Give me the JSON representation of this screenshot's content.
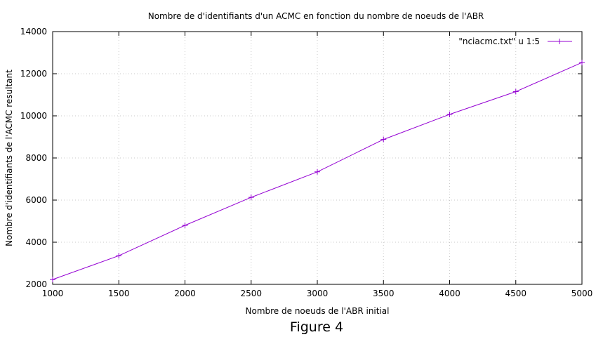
{
  "figure_caption": "Figure 4",
  "chart_data": {
    "type": "line",
    "title": "Nombre de d'identifiants d'un ACMC en fonction du nombre de noeuds de l'ABR",
    "xlabel": "Nombre de noeuds de l'ABR initial",
    "ylabel": "Nombre d'identifiants de l'ACMC resultant",
    "xlim": [
      1000,
      5000
    ],
    "ylim": [
      2000,
      14000
    ],
    "xticks": [
      1000,
      1500,
      2000,
      2500,
      3000,
      3500,
      4000,
      4500,
      5000
    ],
    "yticks": [
      2000,
      4000,
      6000,
      8000,
      10000,
      12000,
      14000
    ],
    "grid": true,
    "legend_position": "top-right",
    "series": [
      {
        "name": "\"nciacmc.txt\" u 1:5",
        "color": "#9400d3",
        "marker": "plus",
        "x": [
          1000,
          1500,
          2000,
          2500,
          3000,
          3500,
          4000,
          4500,
          5000
        ],
        "y": [
          2230,
          3360,
          4800,
          6130,
          7340,
          8880,
          10070,
          11150,
          12530
        ]
      }
    ]
  }
}
